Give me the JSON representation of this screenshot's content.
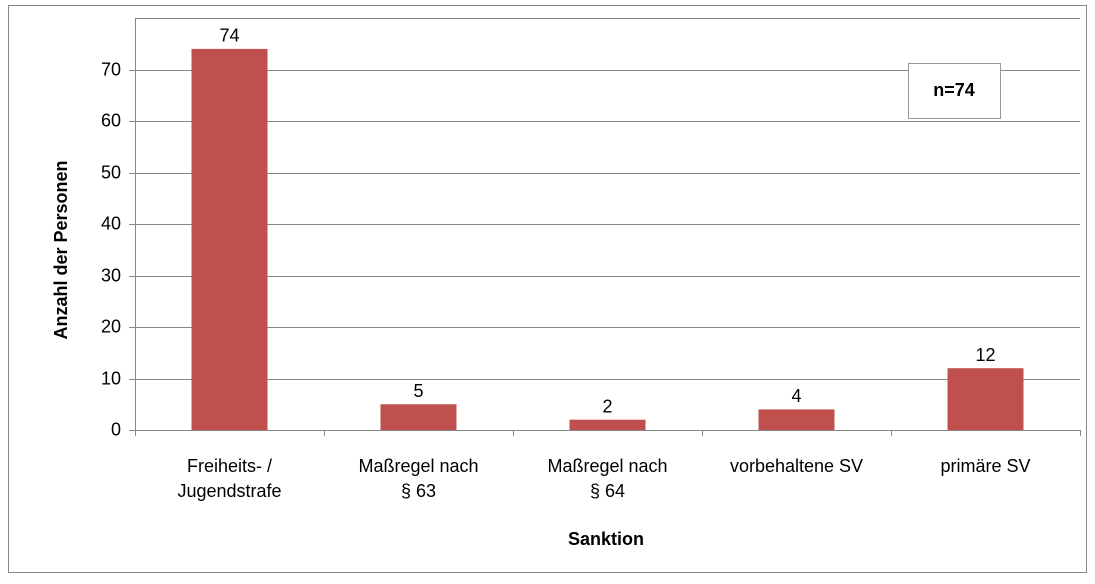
{
  "chart_data": {
    "type": "bar",
    "categories": [
      "Freiheits- /\nJugendstrafe",
      "Maßregel nach\n§ 63",
      "Maßregel nach\n§ 64",
      "vorbehaltene SV",
      "primäre SV"
    ],
    "values": [
      74,
      5,
      2,
      4,
      12
    ],
    "color": "#c0504d",
    "ylim": [
      0,
      80
    ],
    "yticks": [
      0,
      10,
      20,
      30,
      40,
      50,
      60,
      70
    ],
    "grid": true,
    "x_label": "Sanktion",
    "y_label": "Anzahl der Personen",
    "annotation": "n=74"
  }
}
